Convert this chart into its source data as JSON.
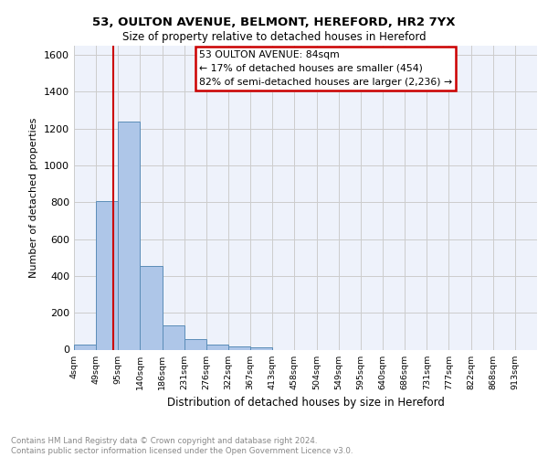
{
  "title_line1": "53, OULTON AVENUE, BELMONT, HEREFORD, HR2 7YX",
  "title_line2": "Size of property relative to detached houses in Hereford",
  "xlabel": "Distribution of detached houses by size in Hereford",
  "ylabel": "Number of detached properties",
  "bar_labels": [
    "4sqm",
    "49sqm",
    "95sqm",
    "140sqm",
    "186sqm",
    "231sqm",
    "276sqm",
    "322sqm",
    "367sqm",
    "413sqm",
    "458sqm",
    "504sqm",
    "549sqm",
    "595sqm",
    "640sqm",
    "686sqm",
    "731sqm",
    "777sqm",
    "822sqm",
    "868sqm",
    "913sqm"
  ],
  "bar_values": [
    25,
    805,
    1240,
    455,
    130,
    58,
    25,
    15,
    10,
    0,
    0,
    0,
    0,
    0,
    0,
    0,
    0,
    0,
    0,
    0,
    0
  ],
  "bar_color": "#aec6e8",
  "bar_edge_color": "#5b8db8",
  "annotation_box_text": "53 OULTON AVENUE: 84sqm\n← 17% of detached houses are smaller (454)\n82% of semi-detached houses are larger (2,236) →",
  "property_line_x": 84,
  "annotation_color": "#cc0000",
  "ylim": [
    0,
    1650
  ],
  "yticks": [
    0,
    200,
    400,
    600,
    800,
    1000,
    1200,
    1400,
    1600
  ],
  "footer_line1": "Contains HM Land Registry data © Crown copyright and database right 2024.",
  "footer_line2": "Contains public sector information licensed under the Open Government Licence v3.0.",
  "bg_color": "#eef2fb",
  "grid_color": "#cccccc",
  "bin_edges": [
    4,
    49,
    95,
    140,
    186,
    231,
    276,
    322,
    367,
    413,
    458,
    504,
    549,
    595,
    640,
    686,
    731,
    777,
    822,
    868,
    913
  ]
}
